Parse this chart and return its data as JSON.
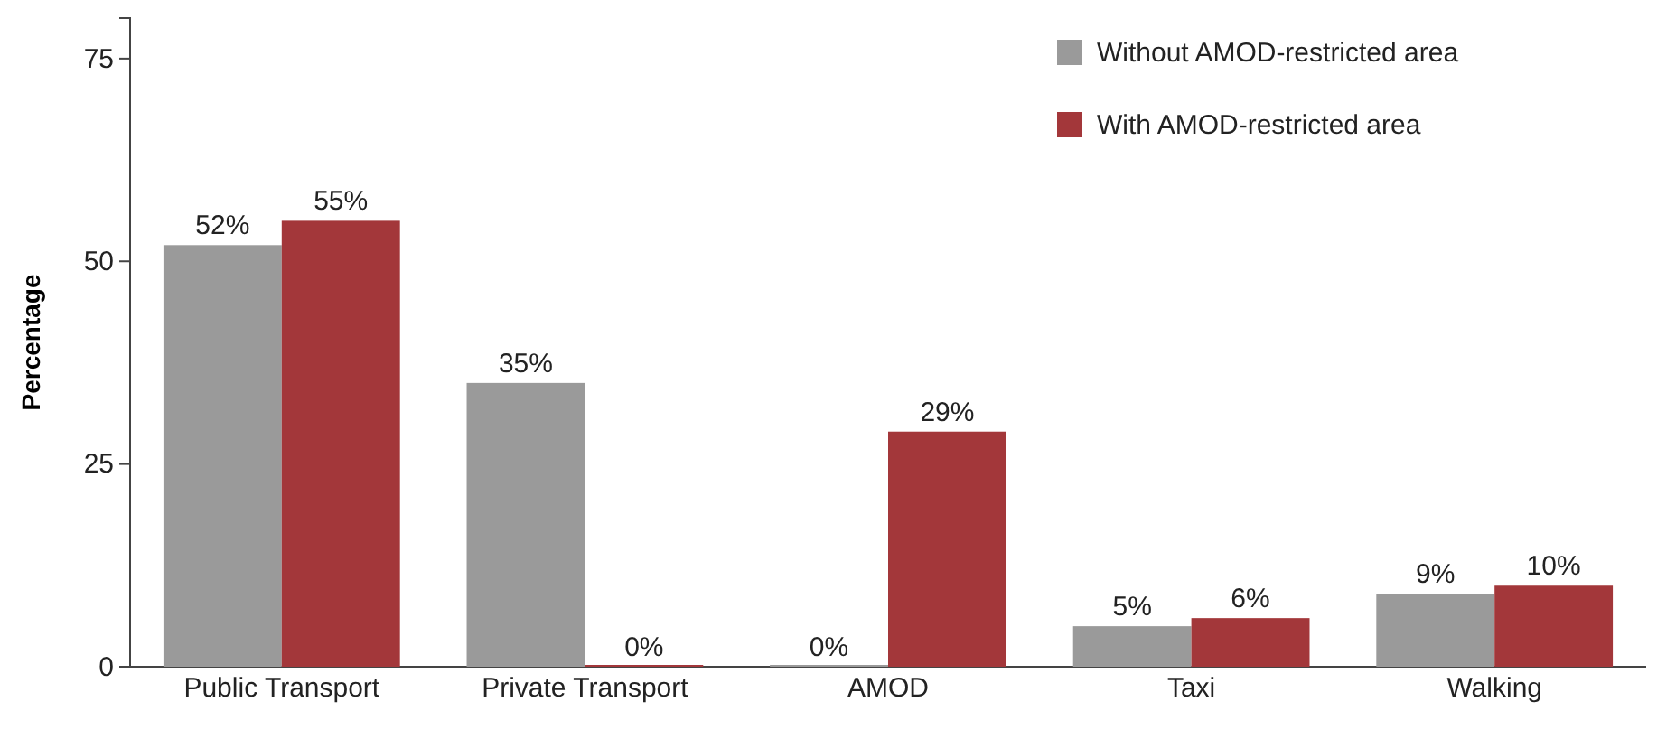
{
  "chart_data": {
    "type": "bar",
    "ylabel": "Percentage",
    "categories": [
      "Public Transport",
      "Private Transport",
      "AMOD",
      "Taxi",
      "Walking"
    ],
    "series": [
      {
        "name": "Without AMOD-restricted area",
        "color": "#9a9a9a",
        "values": [
          52,
          35,
          0,
          5,
          9
        ],
        "value_labels": [
          "52%",
          "35%",
          "0%",
          "5%",
          "9%"
        ]
      },
      {
        "name": "With AMOD-restricted area",
        "color": "#a3373a",
        "values": [
          55,
          0,
          29,
          6,
          10
        ],
        "value_labels": [
          "55%",
          "0%",
          "29%",
          "6%",
          "10%"
        ]
      }
    ],
    "ylim": [
      0,
      80
    ],
    "yticks": [
      0,
      25,
      50,
      75
    ],
    "grid": false,
    "legend": "top right"
  }
}
